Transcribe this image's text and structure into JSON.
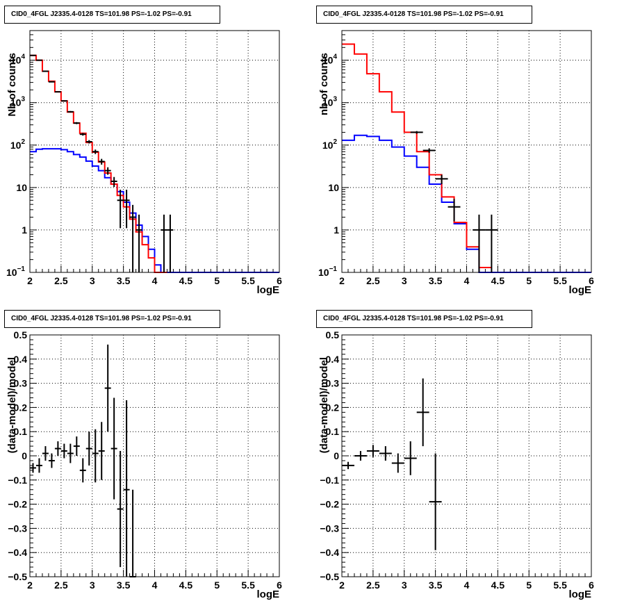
{
  "chart_data": [
    {
      "id": "counts-left",
      "type": "line",
      "title": "CID0_4FGL J2335.4-0128 TS=101.98 PS=-1.02 PS=-0.91",
      "xlabel": "logE",
      "ylabel": "Nb of counts",
      "xlim": [
        2,
        6
      ],
      "ylim": [
        0.1,
        50000
      ],
      "yscale": "log",
      "grid": true,
      "xticks": [
        "2",
        "2.5",
        "3",
        "3.5",
        "4",
        "4.5",
        "5",
        "5.5",
        "6"
      ],
      "yticks": [
        {
          "v": 0.1,
          "base": "10",
          "exp": "−1"
        },
        {
          "v": 1,
          "label": "1"
        },
        {
          "v": 10,
          "label": "10"
        },
        {
          "v": 100,
          "base": "10",
          "exp": "2"
        },
        {
          "v": 1000,
          "base": "10",
          "exp": "3"
        },
        {
          "v": 10000,
          "base": "10",
          "exp": "4"
        }
      ],
      "series": [
        {
          "color": "#0000ff",
          "style": "hist",
          "bin_width": 0.1,
          "x": [
            2.0,
            2.1,
            2.2,
            2.3,
            2.4,
            2.5,
            2.6,
            2.7,
            2.8,
            2.9,
            3.0,
            3.1,
            3.2,
            3.3,
            3.4,
            3.5,
            3.6,
            3.7,
            3.8,
            3.9,
            4.0,
            4.1,
            4.2,
            4.3,
            4.4,
            4.5,
            4.6,
            4.7,
            4.8,
            4.9,
            5.0,
            5.1,
            5.2,
            5.3,
            5.4,
            5.5,
            5.6,
            5.7,
            5.8,
            5.9
          ],
          "values": [
            70,
            80,
            82,
            82,
            82,
            78,
            70,
            60,
            52,
            42,
            32,
            25,
            17,
            12,
            8,
            4.5,
            2.5,
            1.3,
            0.7,
            0.35,
            0.15,
            0.1,
            0.1,
            0.1,
            0.1,
            0.1,
            0.1,
            0.1,
            0.1,
            0.1,
            0.1,
            0.1,
            0.1,
            0.1,
            0.1,
            0.1,
            0.1,
            0.1,
            0.1,
            0.1
          ]
        },
        {
          "color": "#ff0000",
          "style": "hist",
          "bin_width": 0.1,
          "x": [
            2.0,
            2.1,
            2.2,
            2.3,
            2.4,
            2.5,
            2.6,
            2.7,
            2.8,
            2.9,
            3.0,
            3.1,
            3.2,
            3.3,
            3.4,
            3.5,
            3.6,
            3.7,
            3.8,
            3.9,
            4.0,
            4.1
          ],
          "values": [
            13000,
            10000,
            5500,
            3200,
            1800,
            1100,
            600,
            330,
            190,
            115,
            68,
            40,
            22,
            12,
            6.5,
            3.5,
            1.8,
            0.9,
            0.45,
            0.22,
            0.1,
            0.1
          ]
        },
        {
          "color": "#000000",
          "style": "points",
          "bin_width": 0.1,
          "x": [
            2.05,
            2.15,
            2.25,
            2.35,
            2.45,
            2.55,
            2.65,
            2.75,
            2.85,
            2.95,
            3.05,
            3.15,
            3.25,
            3.35,
            3.45,
            3.55,
            3.65,
            3.75,
            4.15,
            4.25
          ],
          "values": [
            13000,
            10000,
            5500,
            3100,
            1800,
            1100,
            610,
            330,
            180,
            120,
            70,
            41,
            25,
            14,
            5,
            5,
            2,
            1,
            1,
            1
          ],
          "yerr_lo": [
            115,
            100,
            75,
            56,
            43,
            33,
            25,
            18,
            13,
            11,
            8.4,
            6.4,
            5,
            3.7,
            3.9,
            3.9,
            1.9,
            1,
            1,
            1
          ],
          "yerr_hi": [
            115,
            100,
            75,
            56,
            43,
            33,
            25,
            18,
            13,
            11,
            8.4,
            6.4,
            5,
            3.7,
            3.9,
            3.9,
            1.9,
            1.3,
            1.3,
            1.3
          ]
        }
      ]
    },
    {
      "id": "counts-right",
      "type": "line",
      "title": "CID0_4FGL J2335.4-0128 TS=101.98 PS=-1.02 PS=-0.91",
      "xlabel": "logE",
      "ylabel": "nb of counts",
      "xlim": [
        2,
        6
      ],
      "ylim": [
        0.1,
        50000
      ],
      "yscale": "log",
      "grid": true,
      "xticks": [
        "2",
        "2.5",
        "3",
        "3.5",
        "4",
        "4.5",
        "5",
        "5.5",
        "6"
      ],
      "yticks": [
        {
          "v": 0.1,
          "base": "10",
          "exp": "−1"
        },
        {
          "v": 1,
          "label": "1"
        },
        {
          "v": 10,
          "label": "10"
        },
        {
          "v": 100,
          "base": "10",
          "exp": "2"
        },
        {
          "v": 1000,
          "base": "10",
          "exp": "3"
        },
        {
          "v": 10000,
          "base": "10",
          "exp": "4"
        }
      ],
      "series": [
        {
          "color": "#0000ff",
          "style": "hist",
          "bin_width": 0.2,
          "x": [
            2.0,
            2.2,
            2.4,
            2.6,
            2.8,
            3.0,
            3.2,
            3.4,
            3.6,
            3.8,
            4.0,
            4.2,
            4.4,
            4.6,
            4.8,
            5.0,
            5.2,
            5.4,
            5.6,
            5.8
          ],
          "values": [
            130,
            170,
            160,
            130,
            90,
            55,
            30,
            12,
            4.5,
            1.4,
            0.35,
            0.1,
            0.1,
            0.1,
            0.1,
            0.1,
            0.1,
            0.1,
            0.1,
            0.1
          ]
        },
        {
          "color": "#ff0000",
          "style": "hist",
          "bin_width": 0.2,
          "x": [
            2.0,
            2.2,
            2.4,
            2.6,
            2.8,
            3.0,
            3.2,
            3.4,
            3.6,
            3.8,
            4.0,
            4.2
          ],
          "values": [
            24000,
            14000,
            4800,
            1800,
            600,
            200,
            70,
            20,
            6,
            1.5,
            0.4,
            0.13
          ]
        },
        {
          "color": "#000000",
          "style": "points",
          "bin_width": 0.2,
          "x": [
            3.2,
            3.4,
            3.6,
            3.8,
            4.2,
            4.4
          ],
          "values": [
            200,
            75,
            16,
            3.5,
            1,
            1
          ],
          "yerr_lo": [
            14,
            9,
            4,
            1.9,
            1,
            1
          ],
          "yerr_hi": [
            14,
            9,
            4,
            1.9,
            1.3,
            1.3
          ]
        }
      ]
    },
    {
      "id": "residuals-left",
      "type": "scatter",
      "title": "CID0_4FGL J2335.4-0128 TS=101.98 PS=-1.02 PS=-0.91",
      "xlabel": "logE",
      "ylabel": "(data-model)/model",
      "xlim": [
        2,
        6
      ],
      "ylim": [
        -0.5,
        0.5
      ],
      "yscale": "linear",
      "grid": true,
      "xticks": [
        "2",
        "2.5",
        "3",
        "3.5",
        "4",
        "4.5",
        "5",
        "5.5",
        "6"
      ],
      "yticks": [
        {
          "v": -0.5,
          "label": "−0.5"
        },
        {
          "v": -0.4,
          "label": "−0.4"
        },
        {
          "v": -0.3,
          "label": "−0.3"
        },
        {
          "v": -0.2,
          "label": "−0.2"
        },
        {
          "v": -0.1,
          "label": "−0.1"
        },
        {
          "v": 0,
          "label": "0"
        },
        {
          "v": 0.1,
          "label": "0.1"
        },
        {
          "v": 0.2,
          "label": "0.2"
        },
        {
          "v": 0.3,
          "label": "0.3"
        },
        {
          "v": 0.4,
          "label": "0.4"
        },
        {
          "v": 0.5,
          "label": "0.5"
        }
      ],
      "series": [
        {
          "color": "#000000",
          "style": "points",
          "bin_width": 0.1,
          "x": [
            2.05,
            2.15,
            2.25,
            2.35,
            2.45,
            2.55,
            2.65,
            2.75,
            2.85,
            2.95,
            3.05,
            3.15,
            3.25,
            3.35,
            3.45,
            3.55,
            3.65
          ],
          "values": [
            -0.05,
            -0.04,
            0.01,
            -0.02,
            0.03,
            0.02,
            0.01,
            0.04,
            -0.06,
            0.03,
            0.01,
            0.02,
            0.28,
            0.03,
            -0.22,
            -0.14,
            -0.5
          ],
          "yerr_lo": [
            0.02,
            0.03,
            0.03,
            0.03,
            0.03,
            0.03,
            0.04,
            0.04,
            0.05,
            0.07,
            0.12,
            0.12,
            0.18,
            0.21,
            0.24,
            0.37,
            0.36
          ],
          "yerr_hi": [
            0.02,
            0.03,
            0.03,
            0.03,
            0.03,
            0.03,
            0.04,
            0.04,
            0.05,
            0.07,
            0.1,
            0.12,
            0.18,
            0.21,
            0.24,
            0.37,
            0.36
          ]
        }
      ]
    },
    {
      "id": "residuals-right",
      "type": "scatter",
      "title": "CID0_4FGL J2335.4-0128 TS=101.98 PS=-1.02 PS=-0.91",
      "xlabel": "logE",
      "ylabel": "(data-model)/model",
      "xlim": [
        2,
        6
      ],
      "ylim": [
        -0.5,
        0.5
      ],
      "yscale": "linear",
      "grid": true,
      "xticks": [
        "2",
        "2.5",
        "3",
        "3.5",
        "4",
        "4.5",
        "5",
        "5.5",
        "6"
      ],
      "yticks": [
        {
          "v": -0.5,
          "label": "−0.5"
        },
        {
          "v": -0.4,
          "label": "−0.4"
        },
        {
          "v": -0.3,
          "label": "−0.3"
        },
        {
          "v": -0.2,
          "label": "−0.2"
        },
        {
          "v": -0.1,
          "label": "−0.1"
        },
        {
          "v": 0,
          "label": "0"
        },
        {
          "v": 0.1,
          "label": "0.1"
        },
        {
          "v": 0.2,
          "label": "0.2"
        },
        {
          "v": 0.3,
          "label": "0.3"
        },
        {
          "v": 0.4,
          "label": "0.4"
        },
        {
          "v": 0.5,
          "label": "0.5"
        }
      ],
      "series": [
        {
          "color": "#000000",
          "style": "points",
          "bin_width": 0.2,
          "x": [
            2.1,
            2.3,
            2.5,
            2.7,
            2.9,
            3.1,
            3.3,
            3.5
          ],
          "values": [
            -0.04,
            0.0,
            0.02,
            0.01,
            -0.03,
            -0.01,
            0.18,
            -0.19
          ],
          "yerr_lo": [
            0.015,
            0.02,
            0.025,
            0.03,
            0.04,
            0.07,
            0.14,
            0.2
          ],
          "yerr_hi": [
            0.015,
            0.02,
            0.025,
            0.03,
            0.04,
            0.07,
            0.14,
            0.2
          ]
        }
      ]
    }
  ]
}
